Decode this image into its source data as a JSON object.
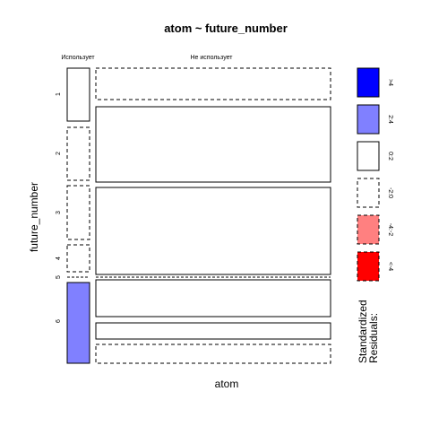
{
  "chart_data": {
    "type": "mosaic",
    "title": "atom ~ future_number",
    "xlabel": "atom",
    "ylabel": "future_number",
    "column_labels": [
      "Использует",
      "Не использует"
    ],
    "row_labels": [
      "1",
      "2",
      "3",
      "4",
      "5",
      "6"
    ],
    "cells": [
      {
        "row": "1",
        "column": "Использует",
        "residual": "0:2"
      },
      {
        "row": "1",
        "column": "Не использует",
        "residual": "-2:0"
      },
      {
        "row": "2",
        "column": "Использует",
        "residual": "-2:0"
      },
      {
        "row": "2",
        "column": "Не использует",
        "residual": "0:2"
      },
      {
        "row": "3",
        "column": "Использует",
        "residual": "-2:0"
      },
      {
        "row": "3",
        "column": "Не использует",
        "residual": "0:2"
      },
      {
        "row": "4",
        "column": "Использует",
        "residual": "-2:0"
      },
      {
        "row": "4",
        "column": "Не использует",
        "residual": "0:2"
      },
      {
        "row": "5",
        "column": "Использует",
        "residual": "-2:0"
      },
      {
        "row": "5",
        "column": "Не использует",
        "residual": "0:2"
      },
      {
        "row": "6",
        "column": "Использует",
        "residual": "2:4"
      },
      {
        "row": "6",
        "column": "Не использует",
        "residual": "0:2"
      },
      {
        "row": "6",
        "column": "Не использует (2)",
        "residual": "0:2"
      },
      {
        "row": "6",
        "column": "Не использует (3)",
        "residual": "-2:0"
      }
    ],
    "legend": {
      "title": "Standardized\nResiduals:",
      "placement": "right",
      "entries": [
        {
          "label": ">4",
          "color": "#0000ff",
          "dashed": false
        },
        {
          "label": "2:4",
          "color": "#8080ff",
          "dashed": false
        },
        {
          "label": "0:2",
          "color": "#ffffff",
          "dashed": false
        },
        {
          "label": "-2:0",
          "color": "#ffffff",
          "dashed": true
        },
        {
          "label": "-4:-2",
          "color": "#ff8080",
          "dashed": true
        },
        {
          "label": "<-4",
          "color": "#ff0000",
          "dashed": true
        }
      ]
    }
  }
}
